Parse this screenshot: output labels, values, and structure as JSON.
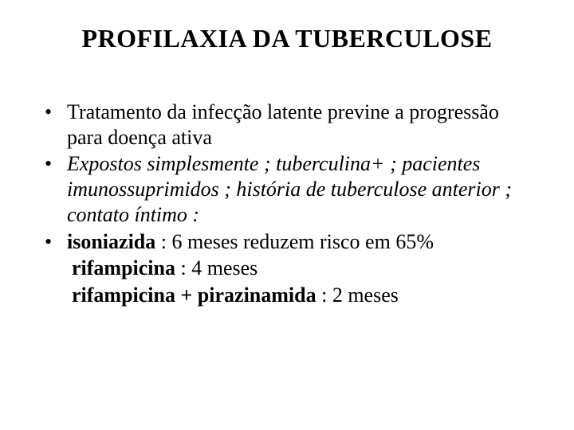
{
  "title": "PROFILAXIA DA TUBERCULOSE",
  "bullets": [
    {
      "segments": [
        {
          "text": "Tratamento da infecção latente previne a progressão para doença ativa"
        }
      ]
    },
    {
      "segments": [
        {
          "text": "Expostos simplesmente ; tuberculina+ ; pacientes imunossuprimidos ; história de tuberculose anterior ; contato íntimo :",
          "italic": true
        }
      ]
    },
    {
      "segments": [
        {
          "text": "isoniazida",
          "bold": true
        },
        {
          "text": " : 6 meses reduzem risco em 65%"
        }
      ]
    },
    {
      "no_bullet": true,
      "segments": [
        {
          "text": "rifampicina",
          "bold": true
        },
        {
          "text": " :  4 meses"
        }
      ]
    },
    {
      "no_bullet": true,
      "segments": [
        {
          "text": "rifampicina + pirazinamida",
          "bold": true
        },
        {
          "text": " : 2 meses"
        }
      ]
    }
  ],
  "style": {
    "background_color": "#ffffff",
    "text_color": "#000000",
    "title_fontsize": 32,
    "body_fontsize": 26,
    "font_family": "Times New Roman"
  }
}
